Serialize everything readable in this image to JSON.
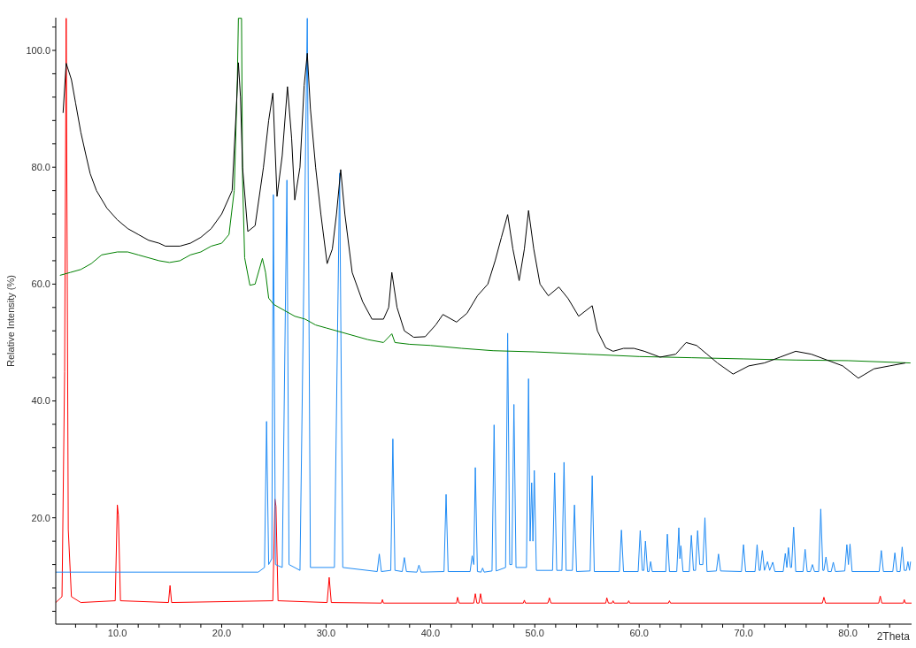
{
  "chart_data": {
    "type": "line",
    "xlabel": "2Theta",
    "ylabel": "Relative Intensity (%)",
    "xlim": [
      4.1,
      86.1
    ],
    "ylim": [
      1.8,
      105.6
    ],
    "xticks": [
      {
        "value": 6,
        "label": null
      },
      {
        "value": 8,
        "label": null
      },
      {
        "value": 10,
        "label": "10.0"
      },
      {
        "value": 12,
        "label": null
      },
      {
        "value": 14,
        "label": null
      },
      {
        "value": 16,
        "label": null
      },
      {
        "value": 18,
        "label": null
      },
      {
        "value": 20,
        "label": "20.0"
      },
      {
        "value": 22,
        "label": null
      },
      {
        "value": 24,
        "label": null
      },
      {
        "value": 26,
        "label": null
      },
      {
        "value": 28,
        "label": null
      },
      {
        "value": 30,
        "label": "30.0"
      },
      {
        "value": 32,
        "label": null
      },
      {
        "value": 34,
        "label": null
      },
      {
        "value": 36,
        "label": null
      },
      {
        "value": 38,
        "label": null
      },
      {
        "value": 40,
        "label": "40.0"
      },
      {
        "value": 42,
        "label": null
      },
      {
        "value": 44,
        "label": null
      },
      {
        "value": 46,
        "label": null
      },
      {
        "value": 48,
        "label": null
      },
      {
        "value": 50,
        "label": "50.0"
      },
      {
        "value": 52,
        "label": null
      },
      {
        "value": 54,
        "label": null
      },
      {
        "value": 56,
        "label": null
      },
      {
        "value": 58,
        "label": null
      },
      {
        "value": 60,
        "label": "60.0"
      },
      {
        "value": 62,
        "label": null
      },
      {
        "value": 64,
        "label": null
      },
      {
        "value": 66,
        "label": null
      },
      {
        "value": 68,
        "label": null
      },
      {
        "value": 70,
        "label": "70.0"
      },
      {
        "value": 72,
        "label": null
      },
      {
        "value": 74,
        "label": null
      },
      {
        "value": 76,
        "label": null
      },
      {
        "value": 78,
        "label": null
      },
      {
        "value": 80,
        "label": "80.0"
      },
      {
        "value": 82,
        "label": null
      },
      {
        "value": 84,
        "label": null
      }
    ],
    "yticks": [
      {
        "value": 4,
        "label": null
      },
      {
        "value": 8,
        "label": null
      },
      {
        "value": 12,
        "label": null
      },
      {
        "value": 16,
        "label": null
      },
      {
        "value": 20,
        "label": "20.0"
      },
      {
        "value": 24,
        "label": null
      },
      {
        "value": 28,
        "label": null
      },
      {
        "value": 32,
        "label": null
      },
      {
        "value": 36,
        "label": null
      },
      {
        "value": 40,
        "label": "40.0"
      },
      {
        "value": 44,
        "label": null
      },
      {
        "value": 48,
        "label": null
      },
      {
        "value": 52,
        "label": null
      },
      {
        "value": 56,
        "label": null
      },
      {
        "value": 60,
        "label": "60.0"
      },
      {
        "value": 64,
        "label": null
      },
      {
        "value": 68,
        "label": null
      },
      {
        "value": 72,
        "label": null
      },
      {
        "value": 76,
        "label": null
      },
      {
        "value": 80,
        "label": "80.0"
      },
      {
        "value": 84,
        "label": null
      },
      {
        "value": 88,
        "label": null
      },
      {
        "value": 92,
        "label": null
      },
      {
        "value": 96,
        "label": null
      },
      {
        "value": 100,
        "label": "100.0"
      },
      {
        "value": 104,
        "label": null
      }
    ],
    "grid": false,
    "line_style": "solid",
    "series": [
      {
        "color": "#ff0000",
        "x": [
          4.1,
          4.7,
          4.95,
          5.1,
          5.3,
          5.6,
          6.5,
          9.8,
          10.0,
          10.1,
          10.3,
          14.9,
          15.05,
          15.2,
          24.9,
          25.1,
          25.2,
          25.4,
          30.1,
          30.3,
          30.5,
          35.3,
          35.4,
          35.5,
          42.5,
          42.6,
          42.75,
          44.15,
          44.3,
          44.45,
          44.65,
          44.8,
          44.95,
          48.9,
          49.0,
          49.1,
          51.25,
          51.4,
          51.55,
          56.8,
          56.9,
          57.05,
          57.4,
          57.5,
          57.6,
          58.9,
          59.0,
          59.1,
          62.8,
          62.9,
          63.0,
          77.55,
          77.7,
          77.85,
          82.95,
          83.1,
          83.25,
          85.3,
          85.4,
          85.5,
          86.1
        ],
        "values": [
          5.5,
          6.5,
          45,
          105.5,
          18,
          6.5,
          5.5,
          5.8,
          22.2,
          20.5,
          5.8,
          5.5,
          8.4,
          5.5,
          5.8,
          23.2,
          22,
          5.8,
          5.5,
          9.8,
          5.5,
          5.4,
          6.0,
          5.4,
          5.4,
          6.4,
          5.4,
          5.4,
          7.0,
          5.4,
          5.4,
          7.0,
          5.4,
          5.4,
          5.9,
          5.4,
          5.4,
          6.3,
          5.4,
          5.4,
          6.3,
          5.4,
          5.4,
          5.8,
          5.4,
          5.4,
          5.8,
          5.4,
          5.4,
          5.8,
          5.4,
          5.4,
          6.4,
          5.4,
          5.4,
          6.6,
          5.4,
          5.4,
          6.0,
          5.4,
          5.4
        ]
      },
      {
        "color": "#1f8bf5",
        "x": [
          4.1,
          23.5,
          24.1,
          24.3,
          24.5,
          24.8,
          24.95,
          25.15,
          25.8,
          26.25,
          26.45,
          27.5,
          28.2,
          28.5,
          30.8,
          31.3,
          31.6,
          34.9,
          35.1,
          35.3,
          36.2,
          36.4,
          36.6,
          37.3,
          37.5,
          37.7,
          38.7,
          38.9,
          39.1,
          41.3,
          41.5,
          41.7,
          43.8,
          44.0,
          44.15,
          44.3,
          44.5,
          44.85,
          45.0,
          45.15,
          45.9,
          46.1,
          46.3,
          47.2,
          47.4,
          47.6,
          47.8,
          48.0,
          48.2,
          49.2,
          49.4,
          49.55,
          49.7,
          49.82,
          49.95,
          50.15,
          51.7,
          51.9,
          52.1,
          52.6,
          52.8,
          53.0,
          53.6,
          53.8,
          54.0,
          55.3,
          55.5,
          55.7,
          58.1,
          58.3,
          58.5,
          59.9,
          60.1,
          60.3,
          60.45,
          60.6,
          60.8,
          60.95,
          61.1,
          61.25,
          62.55,
          62.7,
          62.9,
          63.6,
          63.8,
          63.9,
          64.0,
          64.2,
          64.8,
          65.0,
          65.2,
          65.4,
          65.6,
          65.8,
          66.1,
          66.3,
          66.5,
          67.4,
          67.6,
          67.8,
          69.8,
          70.0,
          70.2,
          71.1,
          71.3,
          71.5,
          71.6,
          71.8,
          72.0,
          72.3,
          72.5,
          72.8,
          73.0,
          73.8,
          74.0,
          74.15,
          74.3,
          74.5,
          74.6,
          74.8,
          75.0,
          75.7,
          75.9,
          76.1,
          76.4,
          76.6,
          76.8,
          77.2,
          77.4,
          77.6,
          77.7,
          77.9,
          78.1,
          78.4,
          78.6,
          78.8,
          79.7,
          79.9,
          80.05,
          80.2,
          80.4,
          83.0,
          83.2,
          83.4,
          84.3,
          84.5,
          84.7,
          85.0,
          85.2,
          85.4,
          85.6,
          85.75,
          85.9,
          86.0
        ],
        "values": [
          10.7,
          10.7,
          11.5,
          36.5,
          12,
          13,
          75.3,
          12,
          11.5,
          77.8,
          12,
          11,
          105.5,
          11.5,
          11.5,
          79,
          11.5,
          10.8,
          13.8,
          10.8,
          11,
          33.5,
          11,
          10.8,
          13.2,
          10.8,
          10.7,
          11.9,
          10.7,
          10.8,
          24.0,
          10.8,
          10.8,
          13.5,
          12,
          28.6,
          10.8,
          10.7,
          11.4,
          10.7,
          10.9,
          35.9,
          10.9,
          11.5,
          51.6,
          12,
          12,
          39.4,
          11.5,
          11.5,
          43.8,
          16,
          26.0,
          16,
          28.1,
          11,
          11,
          27.7,
          11,
          11,
          29.5,
          11,
          11,
          22.2,
          10.8,
          10.9,
          27.2,
          10.8,
          10.8,
          17.9,
          10.8,
          10.8,
          17.8,
          11,
          11,
          16.0,
          10.8,
          10.8,
          12.5,
          10.8,
          10.8,
          17.2,
          10.8,
          10.8,
          18.3,
          13,
          15.2,
          10.8,
          10.8,
          17.0,
          11,
          11,
          17.8,
          12,
          12,
          20.0,
          10.8,
          10.9,
          13.8,
          10.9,
          10.8,
          15.4,
          10.8,
          10.8,
          15.4,
          11,
          11,
          14.4,
          11,
          12.5,
          11,
          12.4,
          10.8,
          10.8,
          13.9,
          11.5,
          14.9,
          11.5,
          11.5,
          18.4,
          10.8,
          10.8,
          14.6,
          10.8,
          10.8,
          12,
          10.8,
          10.8,
          21.5,
          11,
          11,
          13.3,
          10.8,
          10.8,
          12.4,
          10.8,
          10.9,
          15.4,
          12,
          15.5,
          10.8,
          10.8,
          14.4,
          10.8,
          10.8,
          14.0,
          10.8,
          10.8,
          15.0,
          11,
          11,
          12.5,
          11,
          12.5
        ]
      },
      {
        "color": "#008000",
        "x": [
          4.5,
          5.5,
          6.5,
          7.5,
          8.5,
          10,
          11,
          12,
          13,
          14,
          15,
          16,
          17,
          18,
          19,
          20,
          20.7,
          21.2,
          21.5,
          21.6,
          21.9,
          22.0,
          22.2,
          22.7,
          23.2,
          23.9,
          24.2,
          24.5,
          25.0,
          26,
          27,
          28,
          29,
          30,
          32,
          34,
          35.5,
          36.3,
          36.6,
          38,
          40,
          43,
          46,
          50,
          55,
          60,
          65,
          70,
          75,
          80,
          86
        ],
        "values": [
          61.5,
          62,
          62.5,
          63.5,
          65,
          65.5,
          65.5,
          65,
          64.5,
          64,
          63.7,
          64,
          65,
          65.5,
          66.5,
          67,
          68.5,
          76,
          95,
          105.5,
          105.5,
          78,
          64.5,
          59.8,
          60,
          64.4,
          62,
          57.6,
          56.5,
          55.5,
          54.5,
          54,
          53,
          52.5,
          51.5,
          50.5,
          50,
          51.5,
          50,
          49.7,
          49.5,
          49,
          48.6,
          48.4,
          48,
          47.6,
          47.4,
          47.2,
          47,
          46.9,
          46.5
        ]
      },
      {
        "color": "#000000",
        "x": [
          4.8,
          5.1,
          5.6,
          6.0,
          6.5,
          7.0,
          7.4,
          8.0,
          9.0,
          10,
          11,
          12,
          13,
          14,
          14.6,
          16,
          17,
          18,
          19,
          20,
          21.0,
          21.4,
          21.6,
          21.8,
          22.0,
          22.5,
          23.2,
          24.0,
          24.5,
          24.9,
          25.3,
          25.8,
          26.3,
          26.7,
          27.0,
          27.5,
          27.9,
          28.2,
          28.5,
          29.0,
          29.5,
          30.1,
          30.6,
          31.0,
          31.4,
          31.8,
          32.5,
          33.5,
          34.4,
          35.5,
          36.0,
          36.3,
          36.8,
          37.5,
          38.4,
          39.5,
          40.5,
          41.2,
          42.5,
          43.5,
          44.5,
          45.5,
          46.2,
          46.8,
          47.4,
          47.9,
          48.5,
          49.0,
          49.4,
          49.9,
          50.5,
          51.3,
          52.3,
          53.2,
          54.2,
          55.5,
          56.0,
          56.8,
          57.5,
          58.5,
          59.5,
          60.5,
          62,
          63.5,
          64.5,
          65.5,
          66.5,
          67.5,
          69,
          70.5,
          72,
          73.5,
          75,
          76.5,
          78,
          79.5,
          81,
          82.5,
          84,
          85.5
        ],
        "values": [
          89.3,
          97.8,
          95,
          91,
          86,
          82,
          78.9,
          76,
          73,
          71,
          69.5,
          68.5,
          67.5,
          67,
          66.5,
          66.5,
          67,
          68,
          69.5,
          72,
          76,
          90,
          97.9,
          92,
          80,
          69,
          70,
          80,
          88,
          92.7,
          75,
          82,
          93.8,
          85,
          74.4,
          80,
          94,
          99.5,
          90,
          80,
          72,
          63.5,
          66,
          72,
          79.6,
          72,
          62,
          57,
          54,
          54,
          56,
          62,
          56,
          52,
          50.9,
          51,
          53,
          54.8,
          53.5,
          55,
          58,
          60,
          64,
          68,
          71.9,
          66,
          60.6,
          66,
          72.6,
          66,
          60,
          58,
          59.5,
          57.5,
          54.5,
          56.3,
          52,
          49.1,
          48.5,
          49,
          49,
          48.5,
          47.5,
          48,
          50,
          49.5,
          48,
          46.5,
          44.6,
          46,
          46.5,
          47.5,
          48.5,
          48,
          47,
          46,
          43.9,
          45.5,
          46,
          46.5
        ]
      }
    ]
  }
}
